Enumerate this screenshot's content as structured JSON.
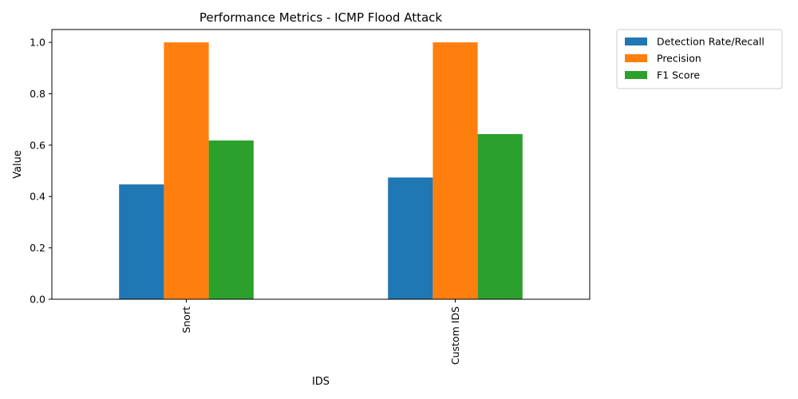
{
  "chart_data": {
    "type": "bar",
    "title": "Performance Metrics - ICMP Flood Attack",
    "xlabel": "IDS",
    "ylabel": "Value",
    "categories": [
      "Snort",
      "Custom IDS"
    ],
    "series": [
      {
        "name": "Detection Rate/Recall",
        "values": [
          0.447,
          0.474
        ],
        "color": "#1f77b4"
      },
      {
        "name": "Precision",
        "values": [
          1.0,
          1.0
        ],
        "color": "#ff7f0e"
      },
      {
        "name": "F1 Score",
        "values": [
          0.618,
          0.643
        ],
        "color": "#2ca02c"
      }
    ],
    "ylim": [
      0,
      1.05
    ],
    "yticks": [
      "0.0",
      "0.2",
      "0.4",
      "0.6",
      "0.8",
      "1.0"
    ],
    "grid": false,
    "legend": "outside-top-right"
  }
}
